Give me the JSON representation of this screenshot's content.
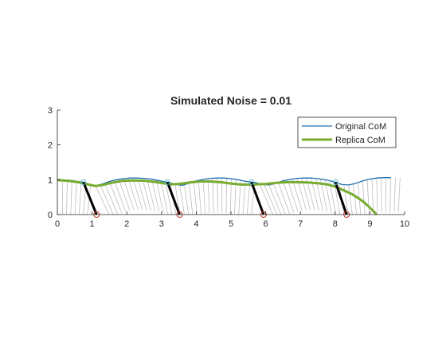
{
  "chart_data": {
    "type": "line",
    "title": "Simulated Noise = 0.01",
    "xlabel": "",
    "ylabel": "",
    "xlim": [
      0,
      10
    ],
    "ylim": [
      0,
      3
    ],
    "xticks": [
      0,
      1,
      2,
      3,
      4,
      5,
      6,
      7,
      8,
      9,
      10
    ],
    "yticks": [
      0,
      1,
      2,
      3
    ],
    "grid": false,
    "legend_position": "top-right",
    "colors": {
      "original": "#1f6fb2",
      "replica": "#77ac30",
      "legs": "#b5b5b5",
      "stance": "#000000",
      "foot_marker": "#c0392b",
      "hip_marker": "#5fb7d6"
    },
    "series": [
      {
        "name": "Original CoM",
        "style": "line",
        "x": [
          0.0,
          0.2,
          0.4,
          0.6,
          0.75,
          0.9,
          1.1,
          1.3,
          1.5,
          1.7,
          1.9,
          2.1,
          2.3,
          2.5,
          2.7,
          2.9,
          3.1,
          3.2,
          3.4,
          3.6,
          3.8,
          4.0,
          4.2,
          4.4,
          4.6,
          4.8,
          5.0,
          5.2,
          5.4,
          5.6,
          5.7,
          5.9,
          6.1,
          6.3,
          6.5,
          6.7,
          6.9,
          7.1,
          7.3,
          7.5,
          7.7,
          7.9,
          8.0,
          8.2,
          8.4,
          8.6,
          8.8,
          9.0,
          9.2,
          9.4,
          9.6
        ],
        "y": [
          1.0,
          0.99,
          0.98,
          0.95,
          0.93,
          0.88,
          0.83,
          0.88,
          0.95,
          1.0,
          1.03,
          1.05,
          1.05,
          1.04,
          1.02,
          0.98,
          0.94,
          0.93,
          0.86,
          0.84,
          0.9,
          0.97,
          1.01,
          1.04,
          1.05,
          1.05,
          1.03,
          1.0,
          0.96,
          0.93,
          0.92,
          0.86,
          0.85,
          0.9,
          0.97,
          1.01,
          1.04,
          1.05,
          1.05,
          1.03,
          1.0,
          0.96,
          0.93,
          0.86,
          0.85,
          0.9,
          0.97,
          1.02,
          1.05,
          1.06,
          1.06
        ]
      },
      {
        "name": "Replica CoM",
        "style": "line",
        "x": [
          0.0,
          0.3,
          0.6,
          0.9,
          1.1,
          1.3,
          1.6,
          1.9,
          2.2,
          2.5,
          2.8,
          3.1,
          3.3,
          3.5,
          3.8,
          4.1,
          4.4,
          4.7,
          5.0,
          5.3,
          5.6,
          5.8,
          6.0,
          6.3,
          6.6,
          6.9,
          7.2,
          7.5,
          7.8,
          8.0,
          8.2,
          8.5,
          8.8,
          9.0,
          9.2
        ],
        "y": [
          0.99,
          0.97,
          0.93,
          0.86,
          0.82,
          0.85,
          0.92,
          0.97,
          0.98,
          0.97,
          0.94,
          0.89,
          0.87,
          0.88,
          0.92,
          0.95,
          0.95,
          0.93,
          0.89,
          0.86,
          0.86,
          0.87,
          0.88,
          0.91,
          0.93,
          0.93,
          0.92,
          0.9,
          0.86,
          0.8,
          0.72,
          0.58,
          0.38,
          0.2,
          0.0
        ]
      }
    ],
    "stance_legs": [
      {
        "hip": [
          0.75,
          0.93
        ],
        "foot": [
          1.13,
          0.0
        ]
      },
      {
        "hip": [
          3.17,
          0.93
        ],
        "foot": [
          3.52,
          0.0
        ]
      },
      {
        "hip": [
          5.59,
          0.93
        ],
        "foot": [
          5.94,
          0.0
        ]
      },
      {
        "hip": [
          8.01,
          0.93
        ],
        "foot": [
          8.33,
          0.0
        ]
      }
    ]
  }
}
